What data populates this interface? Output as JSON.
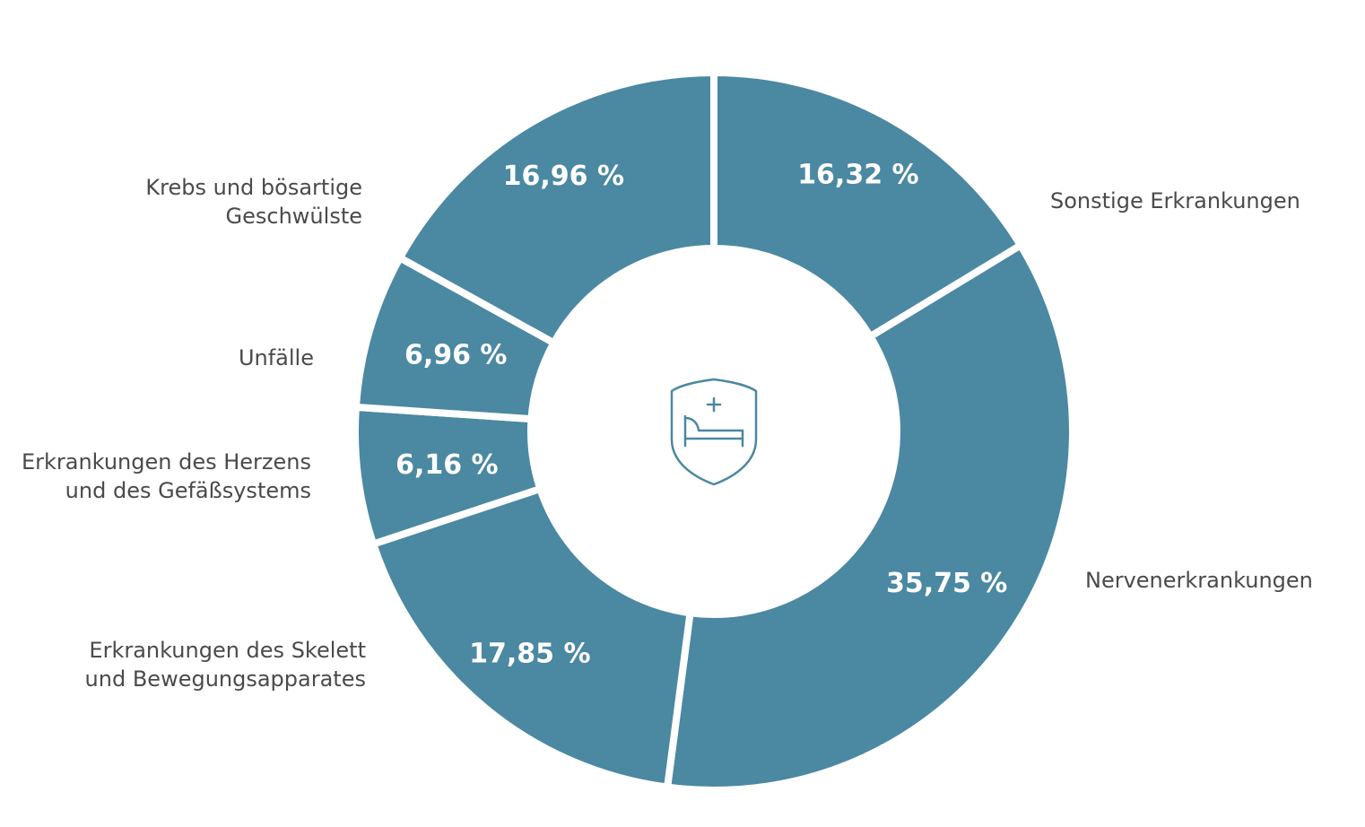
{
  "chart_data": {
    "type": "pie",
    "donut": true,
    "slices": [
      {
        "label": "Sonstige Erkrankungen",
        "value": 16.32,
        "value_label": "16,32 %"
      },
      {
        "label": "Nervenerkrankungen",
        "value": 35.75,
        "value_label": "35,75 %"
      },
      {
        "label": "Erkrankungen des Skelett und Bewegungsapparates",
        "label_lines": [
          "Erkrankungen des Skelett",
          "und Bewegungsapparates"
        ],
        "value": 17.85,
        "value_label": "17,85 %"
      },
      {
        "label": "Erkrankungen des Herzens und des Gefäßsystems",
        "label_lines": [
          "Erkrankungen des Herzens",
          "und des Gefäßsystems"
        ],
        "value": 6.16,
        "value_label": "6,16 %"
      },
      {
        "label": "Unfälle",
        "value": 6.96,
        "value_label": "6,96 %"
      },
      {
        "label": "Krebs und bösartige Geschwülste",
        "label_lines": [
          "Krebs und bösartige",
          "Geschwülste"
        ],
        "value": 16.96,
        "value_label": "16,96 %"
      }
    ],
    "start": "12 o'clock",
    "direction": "clockwise",
    "colors": {
      "slice": "#4b88a2",
      "background": "#ffffff",
      "label_text": "#4a4a4a",
      "value_text": "#ffffff"
    },
    "center_icon": "hospital-bed-shield-icon"
  }
}
